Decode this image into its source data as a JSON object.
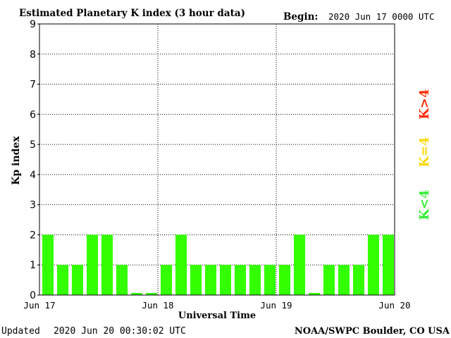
{
  "header": {
    "title": "Estimated Planetary K index (3 hour data)",
    "begin_label": "Begin:",
    "begin_value": "2020 Jun 17 0000 UTC"
  },
  "footer": {
    "updated_label": "Updated",
    "updated_value": "2020 Jun 20 00:30:02 UTC",
    "credit": "NOAA/SWPC Boulder, CO USA"
  },
  "legend": {
    "above": "K>4",
    "equal": "K=4",
    "below": "K<4",
    "colors": {
      "above": "#ff2a00",
      "equal": "#ffd700",
      "below": "#33ee33"
    }
  },
  "chart_data": {
    "type": "bar",
    "title": "Estimated Planetary K index (3 hour data)",
    "xlabel": "Universal Time",
    "ylabel": "Kp index",
    "ylim": [
      0,
      9
    ],
    "yticks": [
      "0",
      "1",
      "2",
      "3",
      "4",
      "5",
      "6",
      "7",
      "8",
      "9"
    ],
    "xticks": [
      "Jun 17",
      "Jun 18",
      "Jun 19",
      "Jun 20"
    ],
    "x": [
      "2020-06-17 00:00",
      "2020-06-17 03:00",
      "2020-06-17 06:00",
      "2020-06-17 09:00",
      "2020-06-17 12:00",
      "2020-06-17 15:00",
      "2020-06-17 18:00",
      "2020-06-17 21:00",
      "2020-06-18 00:00",
      "2020-06-18 03:00",
      "2020-06-18 06:00",
      "2020-06-18 09:00",
      "2020-06-18 12:00",
      "2020-06-18 15:00",
      "2020-06-18 18:00",
      "2020-06-18 21:00",
      "2020-06-19 00:00",
      "2020-06-19 03:00",
      "2020-06-19 06:00",
      "2020-06-19 09:00",
      "2020-06-19 12:00",
      "2020-06-19 15:00",
      "2020-06-19 18:00",
      "2020-06-19 21:00"
    ],
    "values": [
      2,
      1,
      1,
      2,
      2,
      1,
      0,
      0,
      1,
      2,
      1,
      1,
      1,
      1,
      1,
      1,
      1,
      2,
      0,
      1,
      1,
      1,
      2,
      2
    ],
    "bar_color": "#33ff00",
    "grid": "dotted"
  }
}
